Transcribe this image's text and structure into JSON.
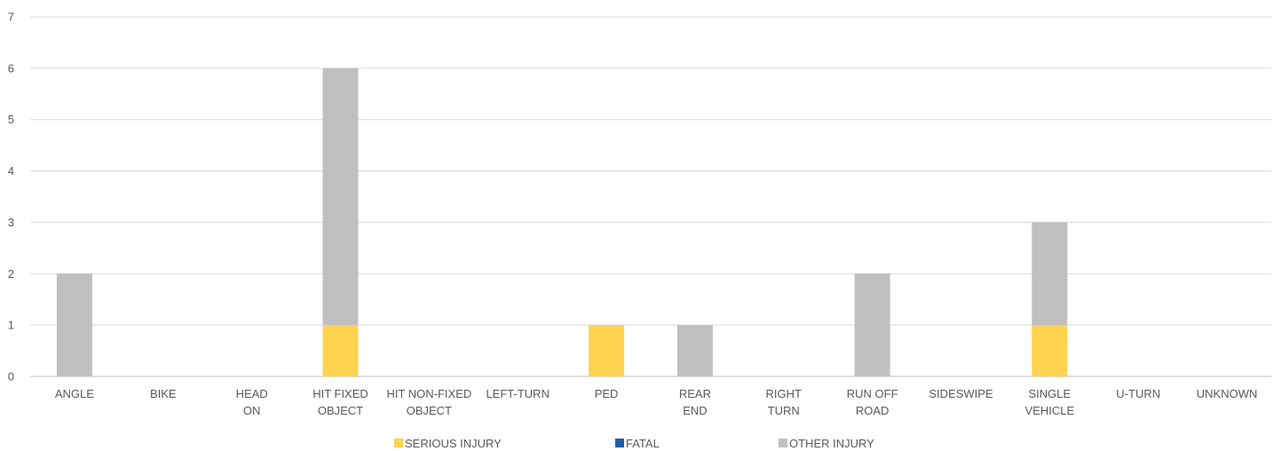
{
  "chart_data": {
    "type": "bar",
    "stacked": true,
    "categories": [
      "ANGLE",
      "BIKE",
      "HEAD ON",
      "HIT FIXED OBJECT",
      "HIT NON-FIXED OBJECT",
      "LEFT-TURN",
      "PED",
      "REAR END",
      "RIGHT TURN",
      "RUN OFF ROAD",
      "SIDESWIPE",
      "SINGLE VEHICLE",
      "U-TURN",
      "UNKNOWN"
    ],
    "category_label_lines": [
      [
        "ANGLE"
      ],
      [
        "BIKE"
      ],
      [
        "HEAD",
        "ON"
      ],
      [
        "HIT FIXED",
        "OBJECT"
      ],
      [
        "HIT NON-FIXED",
        "OBJECT"
      ],
      [
        "LEFT-TURN"
      ],
      [
        "PED"
      ],
      [
        "REAR",
        "END"
      ],
      [
        "RIGHT",
        "TURN"
      ],
      [
        "RUN OFF",
        "ROAD"
      ],
      [
        "SIDESWIPE"
      ],
      [
        "SINGLE",
        "VEHICLE"
      ],
      [
        "U-TURN"
      ],
      [
        "UNKNOWN"
      ]
    ],
    "series": [
      {
        "name": "SERIOUS INJURY",
        "color": "#FFD24F",
        "values": [
          0,
          0,
          0,
          1,
          0,
          0,
          1,
          0,
          0,
          0,
          0,
          1,
          0,
          0
        ]
      },
      {
        "name": "FATAL",
        "color": "#1F5FA6",
        "values": [
          0,
          0,
          0,
          0,
          0,
          0,
          0,
          0,
          0,
          0,
          0,
          0,
          0,
          0
        ]
      },
      {
        "name": "OTHER INJURY",
        "color": "#BFBFBF",
        "values": [
          2,
          0,
          0,
          5,
          0,
          0,
          0,
          1,
          0,
          2,
          0,
          2,
          0,
          0
        ]
      }
    ],
    "ylim": [
      0,
      7
    ],
    "yticks": [
      0,
      1,
      2,
      3,
      4,
      5,
      6,
      7
    ],
    "grid": true,
    "legend_position": "bottom",
    "title": "",
    "xlabel": "",
    "ylabel": ""
  }
}
